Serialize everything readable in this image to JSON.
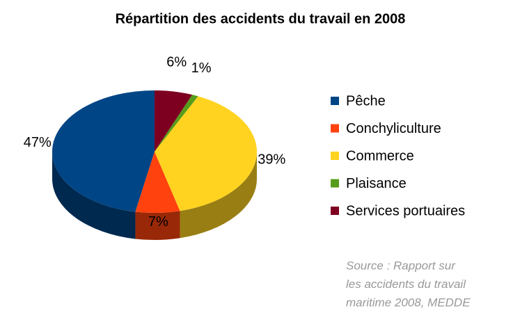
{
  "chart_data": {
    "type": "pie3d",
    "title": "Répartition des accidents du travail en 2008",
    "categories": [
      "Pêche",
      "Conchyliculture",
      "Commerce",
      "Plaisance",
      "Services portuaires"
    ],
    "values": [
      47,
      7,
      39,
      1,
      6
    ],
    "value_labels": [
      "47%",
      "7%",
      "39%",
      "1%",
      "6%"
    ],
    "colors": [
      "#004586",
      "#ff420e",
      "#ffd320",
      "#579d1c",
      "#7e0021"
    ],
    "source": [
      "Source : Rapport sur",
      "les accidents du travail",
      "maritime 2008, MEDDE"
    ]
  }
}
